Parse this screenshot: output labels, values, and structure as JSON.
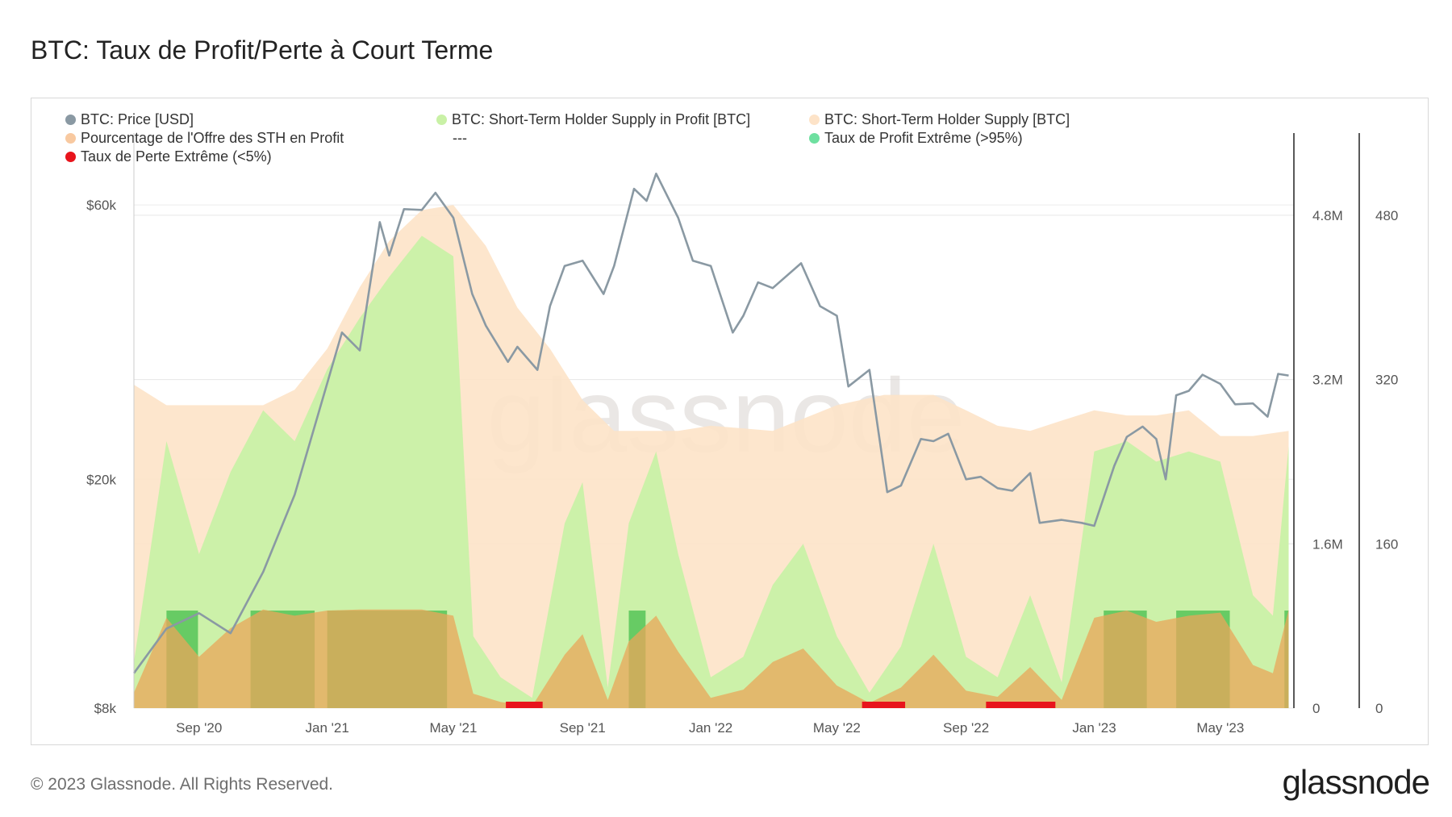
{
  "title": "BTC: Taux de Profit/Perte à Court Terme",
  "footer": "© 2023 Glassnode. All Rights Reserved.",
  "logo": "glassnode",
  "watermark": "glassnode",
  "legend": [
    {
      "label": "BTC: Price [USD]",
      "color": "#8a99a3"
    },
    {
      "label": "BTC: Short-Term Holder Supply in Profit [BTC]",
      "color": "#c9f1a6"
    },
    {
      "label": "BTC: Short-Term Holder Supply [BTC]",
      "color": "#fde3c8"
    },
    {
      "label": "Pourcentage de l'Offre des STH en Profit",
      "color": "#f8c9a0"
    },
    {
      "label": "---",
      "color": ""
    },
    {
      "label": "Taux de Profit Extrême (>95%)",
      "color": "#6ee0a0"
    },
    {
      "label": "Taux de Perte Extrême (<5%)",
      "color": "#e8141c"
    }
  ],
  "chart_data": {
    "type": "area",
    "x_tick_labels": [
      "Sep '20",
      "Jan '21",
      "May '21",
      "Sep '21",
      "Jan '22",
      "May '22",
      "Sep '22",
      "Jan '23",
      "May '23"
    ],
    "x_tick_dates": [
      "2020-09-01",
      "2021-01-01",
      "2021-05-01",
      "2021-09-01",
      "2022-01-01",
      "2022-05-01",
      "2022-09-01",
      "2023-01-01",
      "2023-05-01"
    ],
    "x_range": [
      "2020-07-01",
      "2023-07-10"
    ],
    "y_left": {
      "scale": "log",
      "ticks": [
        "$8k",
        "$20k",
        "$60k"
      ],
      "tick_values": [
        8000,
        20000,
        60000
      ],
      "range": [
        8000,
        80000
      ]
    },
    "y_right_supply": {
      "ticks": [
        "0",
        "1.6M",
        "3.2M",
        "4.8M"
      ],
      "tick_values": [
        0,
        1600000,
        3200000,
        4800000
      ],
      "range": [
        0,
        5600000
      ]
    },
    "y_right_percent": {
      "ticks": [
        "0",
        "160",
        "320",
        "480"
      ],
      "tick_values": [
        0,
        160,
        320,
        480
      ],
      "range": [
        0,
        560
      ]
    },
    "grid": true,
    "legend_position": "top",
    "series": [
      {
        "name": "BTC: Price [USD]",
        "color": "#8a99a3",
        "x": [
          "2020-07-01",
          "2020-08-01",
          "2020-09-01",
          "2020-10-01",
          "2020-11-01",
          "2020-12-01",
          "2021-01-01",
          "2021-01-15",
          "2021-02-01",
          "2021-02-20",
          "2021-03-01",
          "2021-03-15",
          "2021-04-01",
          "2021-04-14",
          "2021-05-01",
          "2021-05-19",
          "2021-06-01",
          "2021-06-22",
          "2021-07-01",
          "2021-07-20",
          "2021-08-01",
          "2021-08-15",
          "2021-09-01",
          "2021-09-21",
          "2021-10-01",
          "2021-10-20",
          "2021-11-01",
          "2021-11-10",
          "2021-12-01",
          "2021-12-15",
          "2022-01-01",
          "2022-01-22",
          "2022-02-01",
          "2022-02-15",
          "2022-03-01",
          "2022-03-28",
          "2022-04-15",
          "2022-05-01",
          "2022-05-12",
          "2022-06-01",
          "2022-06-18",
          "2022-07-01",
          "2022-07-20",
          "2022-08-01",
          "2022-08-15",
          "2022-09-01",
          "2022-09-15",
          "2022-10-01",
          "2022-10-15",
          "2022-11-01",
          "2022-11-10",
          "2022-12-01",
          "2022-12-20",
          "2023-01-01",
          "2023-01-20",
          "2023-02-01",
          "2023-02-16",
          "2023-03-01",
          "2023-03-10",
          "2023-03-20",
          "2023-04-01",
          "2023-04-14",
          "2023-05-01",
          "2023-05-15",
          "2023-06-01",
          "2023-06-15",
          "2023-06-25",
          "2023-07-05"
        ],
        "values": [
          9200,
          11000,
          11700,
          10800,
          13800,
          18800,
          29400,
          36000,
          33500,
          56000,
          49000,
          59000,
          58800,
          63000,
          57000,
          42000,
          37000,
          32000,
          34000,
          31000,
          40000,
          47000,
          48000,
          42000,
          47000,
          64000,
          61000,
          68000,
          57000,
          48000,
          47000,
          36000,
          38500,
          44000,
          43000,
          47500,
          40000,
          38500,
          29000,
          31000,
          19000,
          19500,
          23500,
          23300,
          24000,
          20000,
          20200,
          19300,
          19100,
          20500,
          16800,
          17000,
          16800,
          16600,
          21100,
          23700,
          24700,
          23500,
          20000,
          28000,
          28500,
          30400,
          29300,
          27000,
          27100,
          25700,
          30500,
          30300
        ]
      },
      {
        "name": "BTC: Short-Term Holder Supply [BTC]",
        "color": "#fde3c8",
        "x": [
          "2020-07-01",
          "2020-08-01",
          "2020-09-01",
          "2020-11-01",
          "2020-12-01",
          "2021-01-01",
          "2021-02-01",
          "2021-03-01",
          "2021-04-01",
          "2021-05-01",
          "2021-06-01",
          "2021-07-01",
          "2021-08-01",
          "2021-09-01",
          "2021-10-01",
          "2021-11-01",
          "2021-12-01",
          "2022-01-01",
          "2022-03-01",
          "2022-05-01",
          "2022-06-15",
          "2022-08-01",
          "2022-09-01",
          "2022-10-01",
          "2022-11-01",
          "2022-12-01",
          "2023-01-01",
          "2023-02-01",
          "2023-03-01",
          "2023-04-01",
          "2023-05-01",
          "2023-06-01",
          "2023-07-05"
        ],
        "values": [
          3150000,
          2950000,
          2950000,
          2950000,
          3100000,
          3500000,
          4100000,
          4550000,
          4850000,
          4900000,
          4500000,
          3900000,
          3500000,
          3000000,
          2700000,
          2700000,
          2700000,
          2750000,
          2700000,
          2950000,
          3050000,
          3050000,
          2900000,
          2750000,
          2700000,
          2800000,
          2900000,
          2850000,
          2850000,
          2900000,
          2650000,
          2650000,
          2700000
        ]
      },
      {
        "name": "BTC: Short-Term Holder Supply in Profit [BTC]",
        "color": "#c9f1a6",
        "x": [
          "2020-07-01",
          "2020-08-01",
          "2020-09-01",
          "2020-10-01",
          "2020-11-01",
          "2020-12-01",
          "2021-01-01",
          "2021-02-01",
          "2021-03-01",
          "2021-04-01",
          "2021-05-01",
          "2021-05-20",
          "2021-06-15",
          "2021-07-15",
          "2021-08-15",
          "2021-09-01",
          "2021-09-25",
          "2021-10-15",
          "2021-11-10",
          "2021-12-01",
          "2022-01-01",
          "2022-02-01",
          "2022-03-01",
          "2022-03-30",
          "2022-05-01",
          "2022-06-01",
          "2022-07-01",
          "2022-08-01",
          "2022-09-01",
          "2022-10-01",
          "2022-11-01",
          "2022-12-01",
          "2023-01-01",
          "2023-02-01",
          "2023-03-01",
          "2023-04-01",
          "2023-05-01",
          "2023-06-01",
          "2023-06-20",
          "2023-07-05"
        ],
        "values": [
          450000,
          2600000,
          1500000,
          2300000,
          2900000,
          2600000,
          3300000,
          3800000,
          4200000,
          4600000,
          4400000,
          700000,
          300000,
          100000,
          1800000,
          2200000,
          200000,
          1800000,
          2500000,
          1500000,
          300000,
          500000,
          1200000,
          1600000,
          700000,
          150000,
          600000,
          1600000,
          500000,
          300000,
          1100000,
          250000,
          2500000,
          2600000,
          2400000,
          2500000,
          2400000,
          1100000,
          900000,
          2550000
        ]
      },
      {
        "name": "Pourcentage de l'Offre des STH en Profit",
        "color": "#f8c9a0",
        "x": [
          "2020-07-01",
          "2020-08-01",
          "2020-09-01",
          "2020-10-01",
          "2020-11-01",
          "2020-12-01",
          "2021-01-01",
          "2021-02-01",
          "2021-03-01",
          "2021-04-01",
          "2021-05-01",
          "2021-05-20",
          "2021-06-15",
          "2021-07-15",
          "2021-08-15",
          "2021-09-01",
          "2021-09-25",
          "2021-10-15",
          "2021-11-10",
          "2021-12-01",
          "2022-01-01",
          "2022-02-01",
          "2022-03-01",
          "2022-03-30",
          "2022-05-01",
          "2022-06-01",
          "2022-07-01",
          "2022-08-01",
          "2022-09-01",
          "2022-10-01",
          "2022-11-01",
          "2022-12-01",
          "2023-01-01",
          "2023-02-01",
          "2023-03-01",
          "2023-04-01",
          "2023-05-01",
          "2023-06-01",
          "2023-06-20",
          "2023-07-05"
        ],
        "values": [
          15,
          88,
          50,
          78,
          96,
          90,
          95,
          96,
          96,
          96,
          90,
          14,
          6,
          2,
          52,
          72,
          8,
          65,
          90,
          55,
          10,
          18,
          45,
          58,
          22,
          5,
          20,
          52,
          17,
          11,
          40,
          8,
          88,
          95,
          84,
          90,
          93,
          42,
          34,
          96
        ]
      },
      {
        "name": "Taux de Profit Extrême (>95%)",
        "color": "#5cc65c",
        "periods": [
          [
            "2020-08-01",
            "2020-08-31"
          ],
          [
            "2020-10-20",
            "2020-12-20"
          ],
          [
            "2021-01-01",
            "2021-04-25"
          ],
          [
            "2021-10-15",
            "2021-10-31"
          ],
          [
            "2023-01-10",
            "2023-02-20"
          ],
          [
            "2023-03-20",
            "2023-05-10"
          ],
          [
            "2023-07-01",
            "2023-07-05"
          ]
        ]
      },
      {
        "name": "Taux de Perte Extrême (<5%)",
        "color": "#e8141c",
        "periods": [
          [
            "2021-06-20",
            "2021-07-25"
          ],
          [
            "2022-05-25",
            "2022-07-05"
          ],
          [
            "2022-09-20",
            "2022-11-25"
          ]
        ]
      }
    ]
  }
}
